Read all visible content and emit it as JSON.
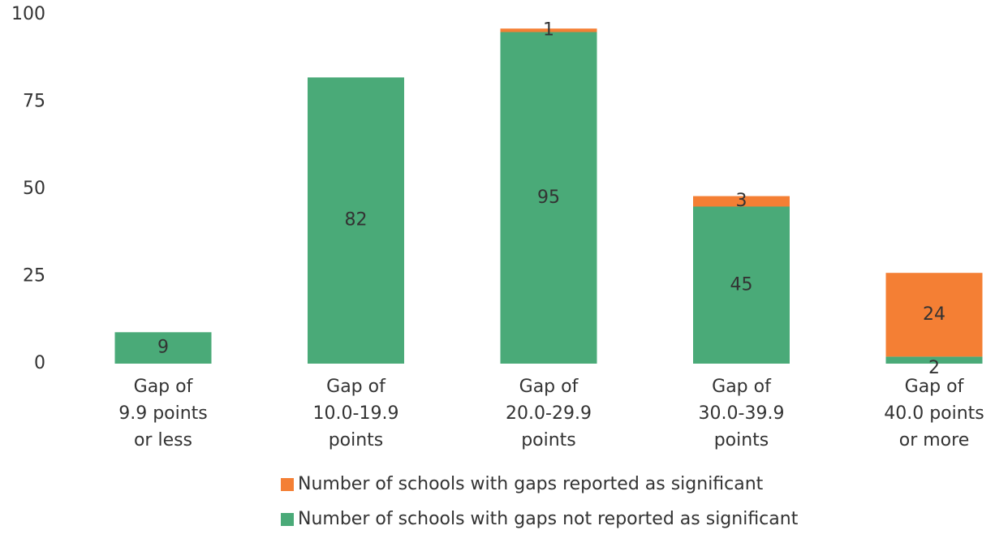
{
  "chart_data": {
    "type": "bar",
    "stacked": true,
    "categories": [
      [
        "Gap of",
        "9.9 points",
        "or less"
      ],
      [
        "Gap of",
        "10.0-19.9",
        "points"
      ],
      [
        "Gap of",
        "20.0-29.9",
        "points"
      ],
      [
        "Gap of",
        "30.0-39.9",
        "points"
      ],
      [
        "Gap of",
        "40.0 points",
        "or more"
      ]
    ],
    "series": [
      {
        "name": "Number of schools with gaps not reported as significant",
        "color": "#4aaa78",
        "values": [
          9,
          82,
          95,
          45,
          2
        ],
        "labels": [
          "9",
          "82",
          "95",
          "45",
          "2"
        ]
      },
      {
        "name": "Number of schools with gaps reported as significant",
        "color": "#f47f34",
        "values": [
          0,
          0,
          1,
          3,
          24
        ],
        "labels": [
          "",
          "",
          "1",
          "3",
          "24"
        ]
      }
    ],
    "yticks": [
      0,
      25,
      50,
      75,
      100
    ],
    "ytick_labels": [
      "0",
      "25",
      "50",
      "75",
      "100"
    ],
    "ylim": [
      0,
      100
    ],
    "grid": false,
    "legend_position": "bottom"
  }
}
